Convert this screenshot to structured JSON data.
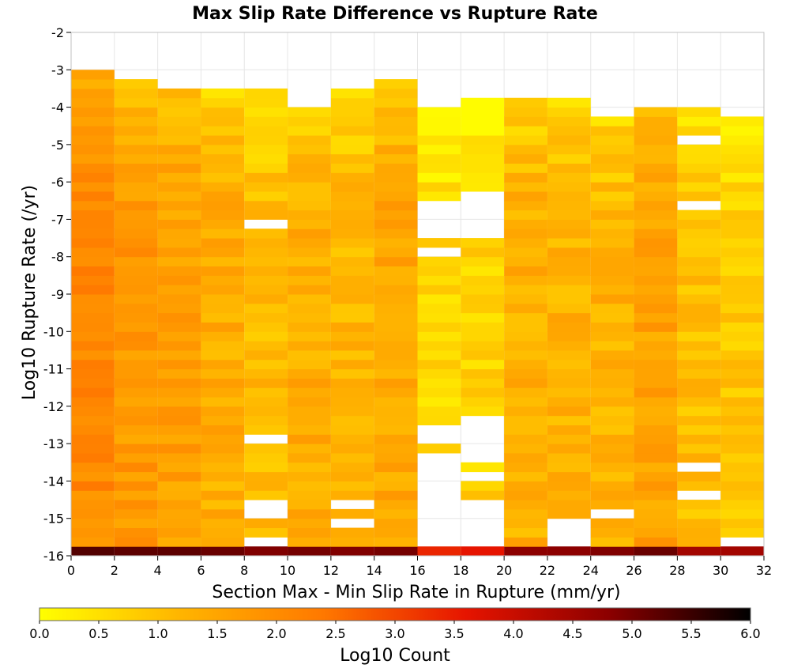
{
  "chart_data": {
    "type": "heatmap",
    "title": "Max Slip Rate Difference vs Rupture Rate",
    "xlabel": "Section Max - Min Slip Rate in Rupture (mm/yr)",
    "ylabel": "Log10 Rupture Rate (/yr)",
    "xlim": [
      0,
      32
    ],
    "ylim": [
      -16,
      -2
    ],
    "x_ticks": [
      "0",
      "2",
      "4",
      "6",
      "8",
      "10",
      "12",
      "14",
      "16",
      "18",
      "20",
      "22",
      "24",
      "26",
      "28",
      "30",
      "32"
    ],
    "y_ticks": [
      "-2",
      "-3",
      "-4",
      "-5",
      "-6",
      "-7",
      "-8",
      "-9",
      "-10",
      "-11",
      "-12",
      "-13",
      "-14",
      "-15",
      "-16"
    ],
    "grid": true,
    "x_bin_width": 2,
    "y_bin_height": 0.25,
    "colorbar": {
      "label": "Log10 Count",
      "range": [
        0,
        6
      ],
      "ticks": [
        "0.0",
        "0.5",
        "1.0",
        "1.5",
        "2.0",
        "2.5",
        "3.0",
        "3.5",
        "4.0",
        "4.5",
        "5.0",
        "5.5",
        "6.0"
      ],
      "colors": [
        "#ffff00",
        "#ffb400",
        "#ff7800",
        "#e61400",
        "#8c0000",
        "#000000"
      ]
    },
    "columns": [
      {
        "x": 1,
        "top": -3.0,
        "base": 2.05,
        "bottom_value": 5.3
      },
      {
        "x": 3,
        "top": -3.25,
        "base": 1.75,
        "bottom_value": 5.2
      },
      {
        "x": 5,
        "top": -3.5,
        "base": 1.6,
        "bottom_value": 5.2
      },
      {
        "x": 7,
        "top": -3.5,
        "base": 1.35,
        "bottom_value": 5.1
      },
      {
        "x": 9,
        "top": -3.5,
        "base": 1.1,
        "bottom_value": 4.9
      },
      {
        "x": 11,
        "top": -4.0,
        "base": 1.35,
        "bottom_value": 5.0
      },
      {
        "x": 13,
        "top": -3.5,
        "base": 1.2,
        "bottom_value": 4.9
      },
      {
        "x": 15,
        "top": -3.25,
        "base": 1.45,
        "bottom_value": 5.0
      },
      {
        "x": 17,
        "top": -4.0,
        "base": 0.65,
        "bottom_value": 3.4
      },
      {
        "x": 19,
        "top": -3.75,
        "base": 0.7,
        "bottom_value": 3.6
      },
      {
        "x": 21,
        "top": -3.75,
        "base": 1.3,
        "bottom_value": 4.8
      },
      {
        "x": 23,
        "top": -3.75,
        "base": 1.25,
        "bottom_value": 4.8
      },
      {
        "x": 25,
        "top": -4.25,
        "base": 1.25,
        "bottom_value": 4.9
      },
      {
        "x": 27,
        "top": -4.0,
        "base": 1.55,
        "bottom_value": 5.1
      },
      {
        "x": 29,
        "top": -4.0,
        "base": 1.05,
        "bottom_value": 4.5
      },
      {
        "x": 31,
        "top": -4.25,
        "base": 0.85,
        "bottom_value": 4.5
      }
    ],
    "empty_bins": [
      {
        "x": 9,
        "y_from": -7.25,
        "y_to": -7.0
      },
      {
        "x": 9,
        "y_from": -13.0,
        "y_to": -12.75
      },
      {
        "x": 9,
        "y_from": -15.0,
        "y_to": -14.5
      },
      {
        "x": 9,
        "y_from": -15.75,
        "y_to": -15.5
      },
      {
        "x": 13,
        "y_from": -14.75,
        "y_to": -14.5
      },
      {
        "x": 13,
        "y_from": -15.25,
        "y_to": -15.0
      },
      {
        "x": 17,
        "y_from": -7.5,
        "y_to": -6.5
      },
      {
        "x": 17,
        "y_from": -8.0,
        "y_to": -7.75
      },
      {
        "x": 17,
        "y_from": -13.0,
        "y_to": -12.5
      },
      {
        "x": 17,
        "y_from": -15.75,
        "y_to": -13.25
      },
      {
        "x": 19,
        "y_from": -7.5,
        "y_to": -6.25
      },
      {
        "x": 19,
        "y_from": -13.5,
        "y_to": -12.25
      },
      {
        "x": 19,
        "y_from": -14.0,
        "y_to": -13.75
      },
      {
        "x": 19,
        "y_from": -15.75,
        "y_to": -14.5
      },
      {
        "x": 23,
        "y_from": -15.75,
        "y_to": -15.0
      },
      {
        "x": 25,
        "y_from": -15.0,
        "y_to": -14.75
      },
      {
        "x": 29,
        "y_from": -5.0,
        "y_to": -4.75
      },
      {
        "x": 29,
        "y_from": -6.75,
        "y_to": -6.5
      },
      {
        "x": 29,
        "y_from": -13.75,
        "y_to": -13.5
      },
      {
        "x": 29,
        "y_from": -14.5,
        "y_to": -14.25
      },
      {
        "x": 31,
        "y_from": -15.75,
        "y_to": -15.5
      }
    ]
  }
}
